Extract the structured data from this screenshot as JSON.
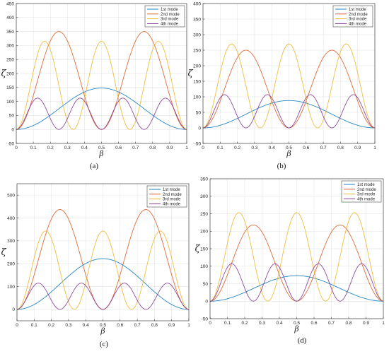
{
  "chart_data": [
    {
      "type": "line",
      "caption": "(a)",
      "xlabel": "β",
      "ylabel": "ζ",
      "xlim": [
        0,
        1
      ],
      "ylim": [
        -50,
        450
      ],
      "xticks": [
        0,
        0.1,
        0.2,
        0.3,
        0.4,
        0.5,
        0.6,
        0.7,
        0.8,
        0.9,
        1
      ],
      "xticklabels": [
        "0",
        "0.1",
        "0.2",
        "0.3",
        "0.4",
        "0.5",
        "0.6",
        "0.7",
        "0.8",
        "0.9",
        "1"
      ],
      "yticks": [
        -50,
        0,
        50,
        100,
        150,
        200,
        250,
        300,
        350,
        400,
        450
      ],
      "yticklabels": [
        "-50",
        "0",
        "50",
        "100",
        "150",
        "200",
        "250",
        "300",
        "350",
        "400",
        "450"
      ],
      "grid": true,
      "legend_position": "top-right",
      "series": [
        {
          "name": "1st mode",
          "color": "#0072BD",
          "amplitude": 148,
          "mode": 1
        },
        {
          "name": "2nd mode",
          "color": "#D95319",
          "amplitude": 350,
          "mode": 2
        },
        {
          "name": "3rd mode",
          "color": "#EDB120",
          "amplitude": 315,
          "mode": 3
        },
        {
          "name": "4th mode",
          "color": "#7E2F8E",
          "amplitude": 112,
          "mode": 4
        }
      ]
    },
    {
      "type": "line",
      "caption": "(b)",
      "xlabel": "β",
      "ylabel": "ζ",
      "xlim": [
        0,
        1
      ],
      "ylim": [
        -50,
        400
      ],
      "xticks": [
        0,
        0.1,
        0.2,
        0.3,
        0.4,
        0.5,
        0.6,
        0.7,
        0.8,
        0.9,
        1
      ],
      "xticklabels": [
        "0",
        "0.1",
        "0.2",
        "0.3",
        "0.4",
        "0.5",
        "0.6",
        "0.7",
        "0.8",
        "0.9",
        "1"
      ],
      "yticks": [
        -50,
        0,
        50,
        100,
        150,
        200,
        250,
        300,
        350,
        400
      ],
      "yticklabels": [
        "-50",
        "0",
        "50",
        "100",
        "150",
        "200",
        "250",
        "300",
        "350",
        "400"
      ],
      "grid": true,
      "legend_position": "top-right",
      "series": [
        {
          "name": "1st mode",
          "color": "#0072BD",
          "amplitude": 88,
          "mode": 1
        },
        {
          "name": "2nd mode",
          "color": "#D95319",
          "amplitude": 250,
          "mode": 2
        },
        {
          "name": "3rd mode",
          "color": "#EDB120",
          "amplitude": 270,
          "mode": 3
        },
        {
          "name": "4th mode",
          "color": "#7E2F8E",
          "amplitude": 107,
          "mode": 4
        }
      ]
    },
    {
      "type": "line",
      "caption": "(c)",
      "xlabel": "β",
      "ylabel": "ζ",
      "xlim": [
        0,
        1
      ],
      "ylim": [
        -50,
        550
      ],
      "xticks": [
        0,
        0.1,
        0.2,
        0.3,
        0.4,
        0.5,
        0.6,
        0.7,
        0.8,
        0.9,
        1
      ],
      "xticklabels": [
        "0",
        "0.1",
        "0.2",
        "0.3",
        "0.4",
        "0.5",
        "0.6",
        "0.7",
        "0.8",
        "0.9",
        "1"
      ],
      "yticks": [
        0,
        100,
        200,
        300,
        400,
        500
      ],
      "yticklabels": [
        "0",
        "100",
        "200",
        "300",
        "400",
        "500"
      ],
      "grid": true,
      "legend_position": "top-right",
      "series": [
        {
          "name": "1st mode",
          "color": "#0072BD",
          "amplitude": 222,
          "mode": 1
        },
        {
          "name": "2nd mode",
          "color": "#D95319",
          "amplitude": 437,
          "mode": 2
        },
        {
          "name": "3rd mode",
          "color": "#EDB120",
          "amplitude": 343,
          "mode": 3
        },
        {
          "name": "4th mode",
          "color": "#7E2F8E",
          "amplitude": 115,
          "mode": 4
        }
      ]
    },
    {
      "type": "line",
      "caption": "(d)",
      "xlabel": "β",
      "ylabel": "ζ",
      "xlim": [
        0,
        1
      ],
      "ylim": [
        -50,
        350
      ],
      "xticks": [
        0,
        0.1,
        0.2,
        0.3,
        0.4,
        0.5,
        0.6,
        0.7,
        0.8,
        0.9,
        1
      ],
      "xticklabels": [
        "0",
        "0.1",
        "0.2",
        "0.3",
        "0.4",
        "0.5",
        "0.6",
        "0.7",
        "0.8",
        "0.9",
        "1"
      ],
      "yticks": [
        -50,
        0,
        50,
        100,
        150,
        200,
        250,
        300,
        350
      ],
      "yticklabels": [
        "-50",
        "0",
        "50",
        "100",
        "150",
        "200",
        "250",
        "300",
        "350"
      ],
      "grid": true,
      "legend_position": "top-right",
      "series": [
        {
          "name": "1st mode",
          "color": "#0072BD",
          "amplitude": 73,
          "mode": 1
        },
        {
          "name": "2nd mode",
          "color": "#D95319",
          "amplitude": 218,
          "mode": 2
        },
        {
          "name": "3rd mode",
          "color": "#EDB120",
          "amplitude": 253,
          "mode": 3
        },
        {
          "name": "4th mode",
          "color": "#7E2F8E",
          "amplitude": 107,
          "mode": 4
        }
      ]
    }
  ]
}
